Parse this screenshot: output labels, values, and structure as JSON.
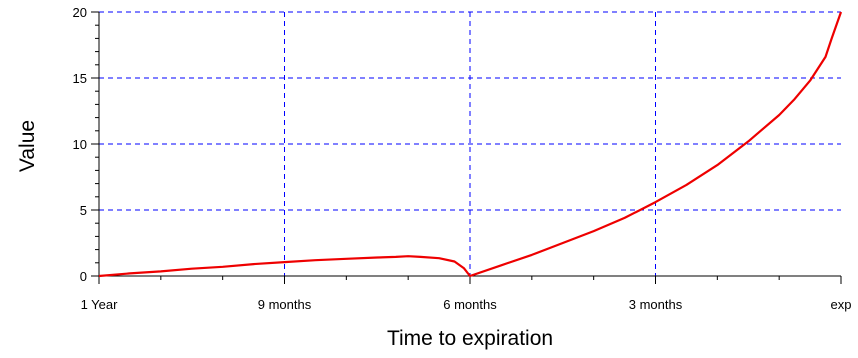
{
  "chart_data": {
    "type": "line",
    "xlabel": "Time to expiration",
    "ylabel": "Value",
    "x_tick_labels": [
      "1 Year",
      "9 months",
      "6 months",
      "3 months",
      "exp"
    ],
    "x_tick_values": [
      12,
      9,
      6,
      3,
      0
    ],
    "x_unit": "months to expiration",
    "xlim": [
      12,
      0
    ],
    "ylim": [
      0,
      20
    ],
    "y_ticks": [
      0,
      5,
      10,
      15,
      20
    ],
    "grid": true,
    "grid_style": "dashed",
    "colors": {
      "grid": "#0000ff",
      "line": "#ee0000",
      "axis": "#000000"
    },
    "series": [
      {
        "points": [
          {
            "x": 12.0,
            "y": 0.0
          },
          {
            "x": 11.5,
            "y": 0.2
          },
          {
            "x": 11.0,
            "y": 0.35
          },
          {
            "x": 10.5,
            "y": 0.55
          },
          {
            "x": 10.0,
            "y": 0.7
          },
          {
            "x": 9.5,
            "y": 0.9
          },
          {
            "x": 9.0,
            "y": 1.05
          },
          {
            "x": 8.5,
            "y": 1.2
          },
          {
            "x": 8.0,
            "y": 1.3
          },
          {
            "x": 7.5,
            "y": 1.4
          },
          {
            "x": 7.2,
            "y": 1.45
          },
          {
            "x": 7.0,
            "y": 1.5
          },
          {
            "x": 6.8,
            "y": 1.45
          },
          {
            "x": 6.5,
            "y": 1.35
          },
          {
            "x": 6.25,
            "y": 1.1
          },
          {
            "x": 6.1,
            "y": 0.6
          },
          {
            "x": 6.0,
            "y": 0.0
          },
          {
            "x": 5.5,
            "y": 0.8
          },
          {
            "x": 5.0,
            "y": 1.6
          },
          {
            "x": 4.5,
            "y": 2.5
          },
          {
            "x": 4.0,
            "y": 3.4
          },
          {
            "x": 3.5,
            "y": 4.4
          },
          {
            "x": 3.0,
            "y": 5.6
          },
          {
            "x": 2.5,
            "y": 6.9
          },
          {
            "x": 2.0,
            "y": 8.4
          },
          {
            "x": 1.5,
            "y": 10.2
          },
          {
            "x": 1.0,
            "y": 12.2
          },
          {
            "x": 0.75,
            "y": 13.4
          },
          {
            "x": 0.5,
            "y": 14.8
          },
          {
            "x": 0.25,
            "y": 16.6
          },
          {
            "x": 0.15,
            "y": 18.0
          },
          {
            "x": 0.0,
            "y": 20.0
          }
        ]
      }
    ]
  }
}
